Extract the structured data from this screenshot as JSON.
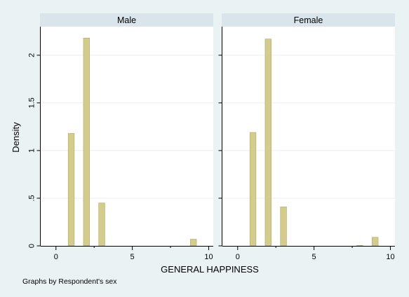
{
  "chart_data": {
    "type": "bar",
    "subtype": "histogram",
    "xlabel": "GENERAL HAPPINESS",
    "ylabel": "Density",
    "xlim": [
      -1,
      10.3
    ],
    "ylim": [
      0,
      2.3
    ],
    "x_ticks": [
      {
        "value": 0,
        "label": "0"
      },
      {
        "value": 5,
        "label": "5"
      },
      {
        "value": 10,
        "label": "10"
      }
    ],
    "y_ticks": [
      {
        "value": 0,
        "label": "0"
      },
      {
        "value": 0.5,
        "label": ".5"
      },
      {
        "value": 1,
        "label": "1"
      },
      {
        "value": 1.5,
        "label": "1.5"
      },
      {
        "value": 2,
        "label": "2"
      }
    ],
    "grid": true,
    "bar_color": "#d4cc8c",
    "bar_edge_color": "#b0a868",
    "panels": [
      {
        "title": "Male",
        "bins": [
          {
            "x": 1,
            "density": 1.18
          },
          {
            "x": 2,
            "density": 2.18
          },
          {
            "x": 3,
            "density": 0.45
          },
          {
            "x": 9,
            "density": 0.07
          }
        ]
      },
      {
        "title": "Female",
        "bins": [
          {
            "x": 1,
            "density": 1.19
          },
          {
            "x": 2,
            "density": 2.17
          },
          {
            "x": 3,
            "density": 0.41
          },
          {
            "x": 8,
            "density": 0.005
          },
          {
            "x": 9,
            "density": 0.09
          }
        ]
      }
    ],
    "note": "Graphs by Respondent's sex"
  }
}
